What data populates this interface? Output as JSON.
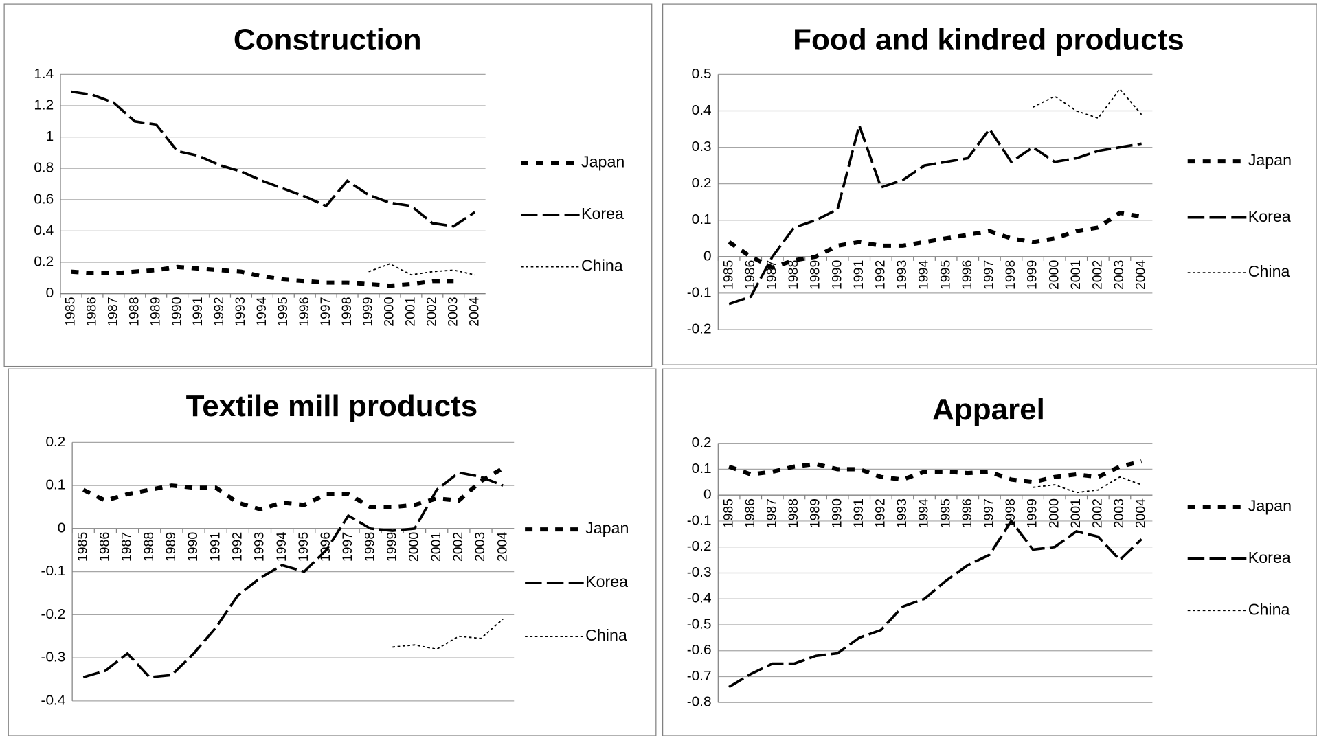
{
  "chart_data": [
    {
      "type": "line",
      "title": "Construction",
      "categories": [
        "1985",
        "1986",
        "1987",
        "1988",
        "1989",
        "1990",
        "1991",
        "1992",
        "1993",
        "1994",
        "1995",
        "1996",
        "1997",
        "1998",
        "1999",
        "2000",
        "2001",
        "2002",
        "2003",
        "2004"
      ],
      "series": [
        {
          "name": "Japan",
          "color": "#000000",
          "values": [
            0.14,
            0.13,
            0.13,
            0.14,
            0.15,
            0.17,
            0.16,
            0.15,
            0.14,
            0.11,
            0.09,
            0.08,
            0.07,
            0.07,
            0.06,
            0.05,
            0.06,
            0.08,
            0.08,
            null
          ]
        },
        {
          "name": "Korea",
          "color": "#000000",
          "values": [
            1.29,
            1.27,
            1.22,
            1.1,
            1.08,
            0.91,
            0.88,
            0.82,
            0.78,
            0.72,
            0.67,
            0.62,
            0.56,
            0.72,
            0.63,
            0.58,
            0.56,
            0.45,
            0.43,
            0.52
          ]
        },
        {
          "name": "China",
          "color": "#000000",
          "values": [
            null,
            null,
            null,
            null,
            null,
            null,
            null,
            null,
            null,
            null,
            null,
            null,
            null,
            null,
            0.14,
            0.19,
            0.12,
            0.14,
            0.15,
            0.12
          ]
        }
      ],
      "ylim": [
        0,
        1.4
      ],
      "yticks": [
        0,
        0.2,
        0.4,
        0.6,
        0.8,
        1,
        1.2,
        1.4
      ],
      "grid": true,
      "legend": "right"
    },
    {
      "type": "line",
      "title": "Food and kindred products",
      "categories": [
        "1985",
        "1986",
        "1987",
        "1988",
        "1989",
        "1990",
        "1991",
        "1992",
        "1993",
        "1994",
        "1995",
        "1996",
        "1997",
        "1998",
        "1999",
        "2000",
        "2001",
        "2002",
        "2003",
        "2004"
      ],
      "series": [
        {
          "name": "Japan",
          "color": "#000000",
          "values": [
            0.04,
            0.0,
            -0.03,
            -0.01,
            0.0,
            0.03,
            0.04,
            0.03,
            0.03,
            0.04,
            0.05,
            0.06,
            0.07,
            0.05,
            0.04,
            0.05,
            0.07,
            0.08,
            0.12,
            0.11
          ]
        },
        {
          "name": "Korea",
          "color": "#000000",
          "values": [
            -0.13,
            -0.11,
            0.0,
            0.08,
            0.1,
            0.13,
            0.36,
            0.19,
            0.21,
            0.25,
            0.26,
            0.27,
            0.35,
            0.26,
            0.3,
            0.26,
            0.27,
            0.29,
            0.3,
            0.31
          ]
        },
        {
          "name": "China",
          "color": "#000000",
          "values": [
            null,
            null,
            null,
            null,
            null,
            null,
            null,
            null,
            null,
            null,
            null,
            null,
            null,
            null,
            0.41,
            0.44,
            0.4,
            0.38,
            0.46,
            0.39
          ]
        }
      ],
      "ylim": [
        -0.2,
        0.5
      ],
      "yticks": [
        -0.2,
        -0.1,
        0,
        0.1,
        0.2,
        0.3,
        0.4,
        0.5
      ],
      "grid": true,
      "legend": "right"
    },
    {
      "type": "line",
      "title": "Textile mill products",
      "categories": [
        "1985",
        "1986",
        "1987",
        "1988",
        "1989",
        "1990",
        "1991",
        "1992",
        "1993",
        "1994",
        "1995",
        "1996",
        "1997",
        "1998",
        "1999",
        "2000",
        "2001",
        "2002",
        "2003",
        "2004"
      ],
      "series": [
        {
          "name": "Japan",
          "color": "#000000",
          "values": [
            0.09,
            0.065,
            0.08,
            0.09,
            0.1,
            0.095,
            0.095,
            0.06,
            0.045,
            0.06,
            0.055,
            0.08,
            0.08,
            0.05,
            0.05,
            0.055,
            0.07,
            0.065,
            0.11,
            0.14
          ]
        },
        {
          "name": "Korea",
          "color": "#000000",
          "values": [
            -0.345,
            -0.33,
            -0.29,
            -0.345,
            -0.34,
            -0.29,
            -0.23,
            -0.155,
            -0.115,
            -0.085,
            -0.1,
            -0.05,
            0.03,
            0.0,
            -0.005,
            0.0,
            0.09,
            0.13,
            0.12,
            0.1
          ]
        },
        {
          "name": "China",
          "color": "#000000",
          "values": [
            null,
            null,
            null,
            null,
            null,
            null,
            null,
            null,
            null,
            null,
            null,
            null,
            null,
            null,
            -0.275,
            -0.27,
            -0.28,
            -0.25,
            -0.255,
            -0.21
          ]
        }
      ],
      "ylim": [
        -0.4,
        0.2
      ],
      "yticks": [
        -0.4,
        -0.3,
        -0.2,
        -0.1,
        0,
        0.1,
        0.2
      ],
      "grid": true,
      "legend": "right"
    },
    {
      "type": "line",
      "title": "Apparel",
      "categories": [
        "1985",
        "1986",
        "1987",
        "1988",
        "1989",
        "1990",
        "1991",
        "1992",
        "1993",
        "1994",
        "1995",
        "1996",
        "1997",
        "1998",
        "1999",
        "2000",
        "2001",
        "2002",
        "2003",
        "2004"
      ],
      "series": [
        {
          "name": "Japan",
          "color": "#000000",
          "values": [
            0.11,
            0.08,
            0.09,
            0.11,
            0.12,
            0.1,
            0.1,
            0.07,
            0.06,
            0.09,
            0.09,
            0.085,
            0.09,
            0.06,
            0.05,
            0.07,
            0.08,
            0.07,
            0.11,
            0.13
          ]
        },
        {
          "name": "Korea",
          "color": "#000000",
          "values": [
            -0.74,
            -0.69,
            -0.65,
            -0.65,
            -0.62,
            -0.61,
            -0.55,
            -0.52,
            -0.43,
            -0.4,
            -0.33,
            -0.27,
            -0.23,
            -0.1,
            -0.21,
            -0.2,
            -0.14,
            -0.16,
            -0.25,
            -0.17
          ]
        },
        {
          "name": "China",
          "color": "#000000",
          "values": [
            null,
            null,
            null,
            null,
            null,
            null,
            null,
            null,
            null,
            null,
            null,
            null,
            null,
            null,
            0.03,
            0.04,
            0.01,
            0.02,
            0.07,
            0.04
          ]
        }
      ],
      "ylim": [
        -0.8,
        0.2
      ],
      "yticks": [
        -0.8,
        -0.7,
        -0.6,
        -0.5,
        -0.4,
        -0.3,
        -0.2,
        -0.1,
        0,
        0.1,
        0.2
      ],
      "grid": true,
      "legend": "right"
    }
  ]
}
